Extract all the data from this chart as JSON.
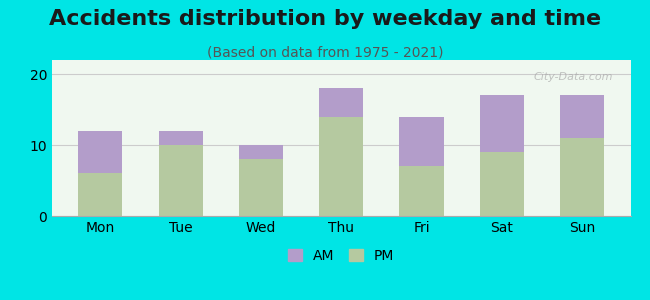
{
  "title": "Accidents distribution by weekday and time",
  "subtitle": "(Based on data from 1975 - 2021)",
  "categories": [
    "Mon",
    "Tue",
    "Wed",
    "Thu",
    "Fri",
    "Sat",
    "Sun"
  ],
  "pm_values": [
    6,
    10,
    8,
    14,
    7,
    9,
    11
  ],
  "am_values": [
    6,
    2,
    2,
    4,
    7,
    8,
    6
  ],
  "am_color": "#b39dca",
  "pm_color": "#b5c9a0",
  "background_color": "#00e5e5",
  "plot_bg_color": "#f0f8f0",
  "ylim": [
    0,
    22
  ],
  "yticks": [
    0,
    10,
    20
  ],
  "grid_color": "#cccccc",
  "title_fontsize": 16,
  "subtitle_fontsize": 10,
  "tick_fontsize": 10,
  "legend_fontsize": 10,
  "watermark": "City-Data.com"
}
